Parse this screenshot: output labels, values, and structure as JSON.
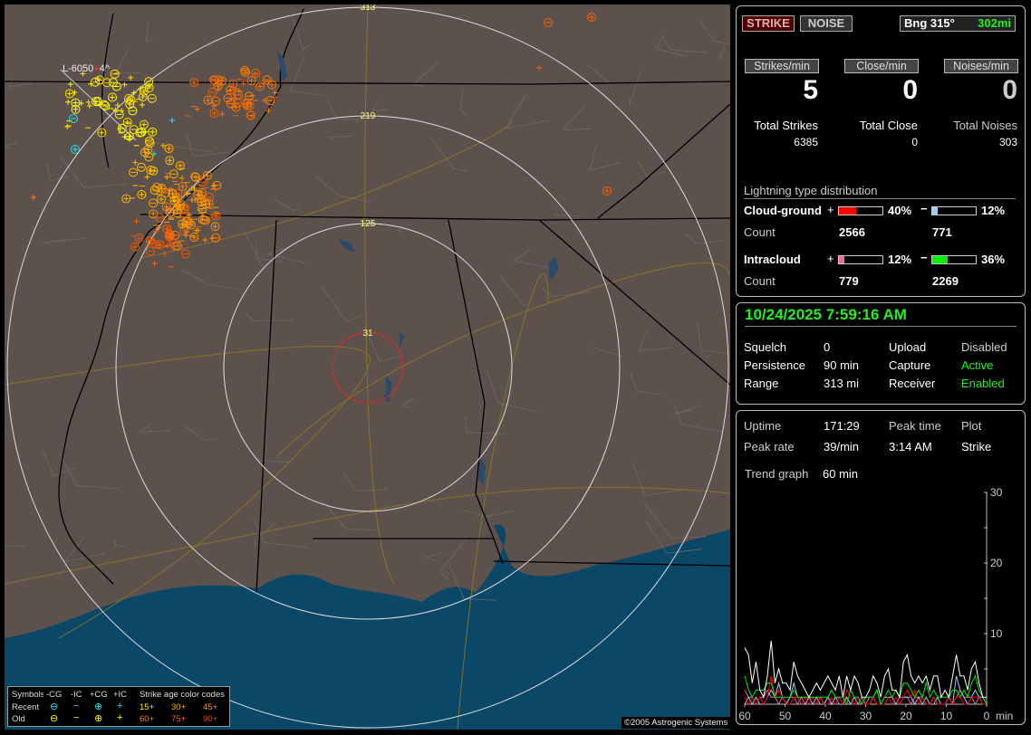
{
  "map": {
    "ring_labels": [
      "31",
      "125",
      "219",
      "313"
    ],
    "tracking_label": "L-6050",
    "tracking_count": "4^",
    "ocean_color": "#0b4766",
    "land_color": "#5c514c",
    "legend": {
      "symbols_label": "Symbols",
      "cols": [
        "-CG",
        "-IC",
        "+CG",
        "+IC"
      ],
      "age_title": "Strike age color codes",
      "rows": [
        {
          "label": "Recent",
          "color": "#22e0f0",
          "ages": [
            "15+",
            "30+",
            "45+"
          ],
          "age_colors": [
            "#ffee00",
            "#ffb000",
            "#ff9000"
          ]
        },
        {
          "label": "Old",
          "color": "#ffff00",
          "ages": [
            "60+",
            "75+",
            "90+"
          ],
          "age_colors": [
            "#ff8000",
            "#ff6000",
            "#ee4400"
          ]
        }
      ]
    },
    "copyright": "©2005 Astrogenic Systems"
  },
  "header": {
    "strike_button": "STRIKE",
    "noise_button": "NOISE",
    "bearing": "Bng 315°",
    "distance": "302mi"
  },
  "rates": [
    {
      "label": "Strikes/min",
      "value": "5",
      "total_label": "Total Strikes",
      "total": "6385"
    },
    {
      "label": "Close/min",
      "value": "0",
      "total_label": "Total Close",
      "total": "0"
    },
    {
      "label": "Noises/min",
      "value": "0",
      "total_label": "Total Noises",
      "total": "303"
    }
  ],
  "distribution": {
    "title": "Lightning type distribution",
    "count_label": "Count",
    "rows": [
      {
        "label": "Cloud-ground",
        "plus_pct": 40,
        "plus_text": "40%",
        "plus_color": "#ff0000",
        "plus_count": "2566",
        "minus_pct": 12,
        "minus_text": "12%",
        "minus_color": "#99ccff",
        "minus_count": "771"
      },
      {
        "label": "Intracloud",
        "plus_pct": 12,
        "plus_text": "12%",
        "plus_color": "#ee66aa",
        "plus_count": "779",
        "minus_pct": 36,
        "minus_text": "36%",
        "minus_color": "#00ee00",
        "minus_count": "2269"
      }
    ]
  },
  "status": {
    "datetime": "10/24/2025 7:59:16 AM",
    "squelch_label": "Squelch",
    "squelch": "0",
    "persistence_label": "Persistence",
    "persistence": "90 min",
    "range_label": "Range",
    "range": "313 mi",
    "upload_label": "Upload",
    "upload": "Disabled",
    "capture_label": "Capture",
    "capture": "Active",
    "receiver_label": "Receiver",
    "receiver": "Enabled"
  },
  "stats": {
    "uptime_label": "Uptime",
    "uptime": "171:29",
    "peak_time_label": "Peak time",
    "peak_time": "3:14 AM",
    "plot_label": "Plot",
    "plot": "Strike",
    "peak_rate_label": "Peak rate",
    "peak_rate": "39/min",
    "trend_label": "Trend graph",
    "trend": "60 min"
  },
  "chart_data": {
    "type": "line",
    "xlabel": "min",
    "x_ticks": [
      "60",
      "50",
      "40",
      "30",
      "20",
      "10",
      "0"
    ],
    "y_ticks": [
      "10",
      "20",
      "30"
    ],
    "xlim": [
      60,
      0
    ],
    "ylim": [
      0,
      30
    ],
    "series": [
      {
        "color": "#ffffff",
        "values": [
          8,
          7,
          3,
          6,
          2,
          1,
          4,
          9,
          3,
          5,
          3,
          3,
          2,
          6,
          4,
          3,
          2,
          1,
          2,
          3,
          2,
          3,
          4,
          3,
          2,
          4,
          1,
          4,
          2,
          4,
          3,
          1,
          1,
          2,
          4,
          3,
          1,
          4,
          5,
          2,
          2,
          1,
          6,
          7,
          4,
          3,
          4,
          3,
          4,
          2,
          4,
          4,
          1,
          2,
          1,
          4,
          7,
          4,
          4,
          2,
          5,
          6,
          3,
          1,
          1
        ]
      },
      {
        "color": "#00ee00",
        "values": [
          4,
          2,
          1,
          2,
          2,
          2,
          3,
          3,
          1,
          1,
          1,
          1,
          1,
          2,
          1,
          1,
          1,
          1,
          1,
          1,
          1,
          1,
          1,
          2,
          1,
          1,
          1,
          0,
          2,
          1,
          1,
          0,
          1,
          1,
          1,
          2,
          0,
          1,
          2,
          1,
          2,
          1,
          3,
          3,
          2,
          1,
          2,
          1,
          3,
          1,
          2,
          1,
          1,
          1,
          1,
          2,
          2,
          1,
          2,
          1,
          3,
          4,
          2,
          1,
          0
        ]
      },
      {
        "color": "#ff0000",
        "values": [
          1,
          0,
          1,
          0,
          1,
          0,
          1,
          4,
          1,
          2,
          1,
          0,
          0,
          1,
          1,
          0,
          1,
          0,
          1,
          0,
          1,
          0,
          0,
          1,
          0,
          1,
          0,
          2,
          1,
          0,
          1,
          0,
          0,
          0,
          1,
          0,
          0,
          0,
          1,
          0,
          1,
          0,
          1,
          2,
          1,
          2,
          0,
          1,
          0,
          0,
          1,
          0,
          0,
          0,
          1,
          0,
          1,
          1,
          0,
          0,
          1,
          1,
          1,
          0,
          0
        ]
      },
      {
        "color": "#99ccff",
        "values": [
          0,
          1,
          0,
          1,
          0,
          0,
          1,
          2,
          1,
          3,
          1,
          0,
          1,
          3,
          1,
          0,
          0,
          1,
          0,
          1,
          0,
          0,
          1,
          0,
          1,
          0,
          0,
          1,
          0,
          1,
          0,
          0,
          0,
          0,
          1,
          2,
          0,
          1,
          1,
          1,
          0,
          0,
          1,
          1,
          1,
          0,
          1,
          0,
          1,
          0,
          0,
          1,
          0,
          0,
          1,
          0,
          4,
          2,
          1,
          0,
          1,
          2,
          1,
          1,
          0
        ]
      },
      {
        "color": "#ee66aa",
        "values": [
          2,
          1,
          1,
          0,
          1,
          1,
          2,
          1,
          1,
          0,
          1,
          0,
          1,
          1,
          0,
          1,
          0,
          1,
          1,
          0,
          1,
          0,
          1,
          0,
          1,
          1,
          0,
          1,
          0,
          0,
          0,
          1,
          0,
          1,
          1,
          0,
          0,
          0,
          1,
          1,
          0,
          1,
          1,
          1,
          0,
          1,
          1,
          1,
          0,
          0,
          1,
          0,
          0,
          0,
          1,
          0,
          1,
          2,
          1,
          1,
          1,
          0,
          1,
          0,
          0
        ]
      }
    ]
  }
}
